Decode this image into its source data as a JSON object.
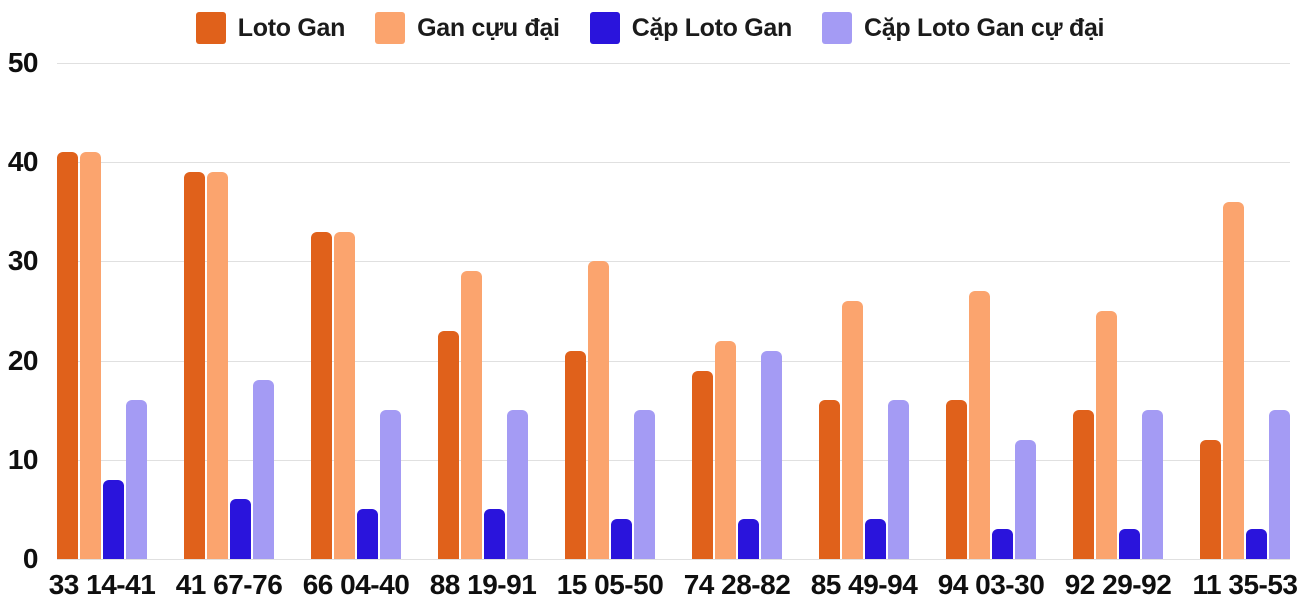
{
  "chart": {
    "background_color": "#ffffff",
    "grid_color": "#e0e0e0",
    "text_color": "#0f0f0f",
    "legend_text_color": "#1b1b1b"
  },
  "chart_data": {
    "type": "bar",
    "title": "",
    "xlabel": "",
    "ylabel": "",
    "grid": true,
    "legend_position": "top",
    "y_axis": {
      "min": 0,
      "max": 50,
      "tick_step": 10,
      "ticks": [
        0,
        10,
        20,
        30,
        40,
        50
      ]
    },
    "categories": [
      "33 14-41",
      "41 67-76",
      "66 04-40",
      "88 19-91",
      "15 05-50",
      "74 28-82",
      "85 49-94",
      "94 03-30",
      "92 29-92",
      "11 35-53"
    ],
    "series": [
      {
        "name": "Loto Gan",
        "color": "#E0611B",
        "values": [
          41,
          39,
          33,
          23,
          21,
          19,
          16,
          16,
          15,
          12
        ]
      },
      {
        "name": "Gan cựu đại",
        "color": "#FBA46E",
        "values": [
          41,
          39,
          33,
          29,
          30,
          22,
          26,
          27,
          25,
          36
        ]
      },
      {
        "name": "Cặp Loto Gan",
        "color": "#2A14DC",
        "values": [
          8,
          6,
          5,
          5,
          4,
          4,
          4,
          3,
          3,
          3
        ]
      },
      {
        "name": "Cặp Loto Gan cự đại",
        "color": "#A49BF4",
        "values": [
          16,
          18,
          15,
          15,
          15,
          21,
          16,
          12,
          15,
          15
        ]
      }
    ]
  }
}
